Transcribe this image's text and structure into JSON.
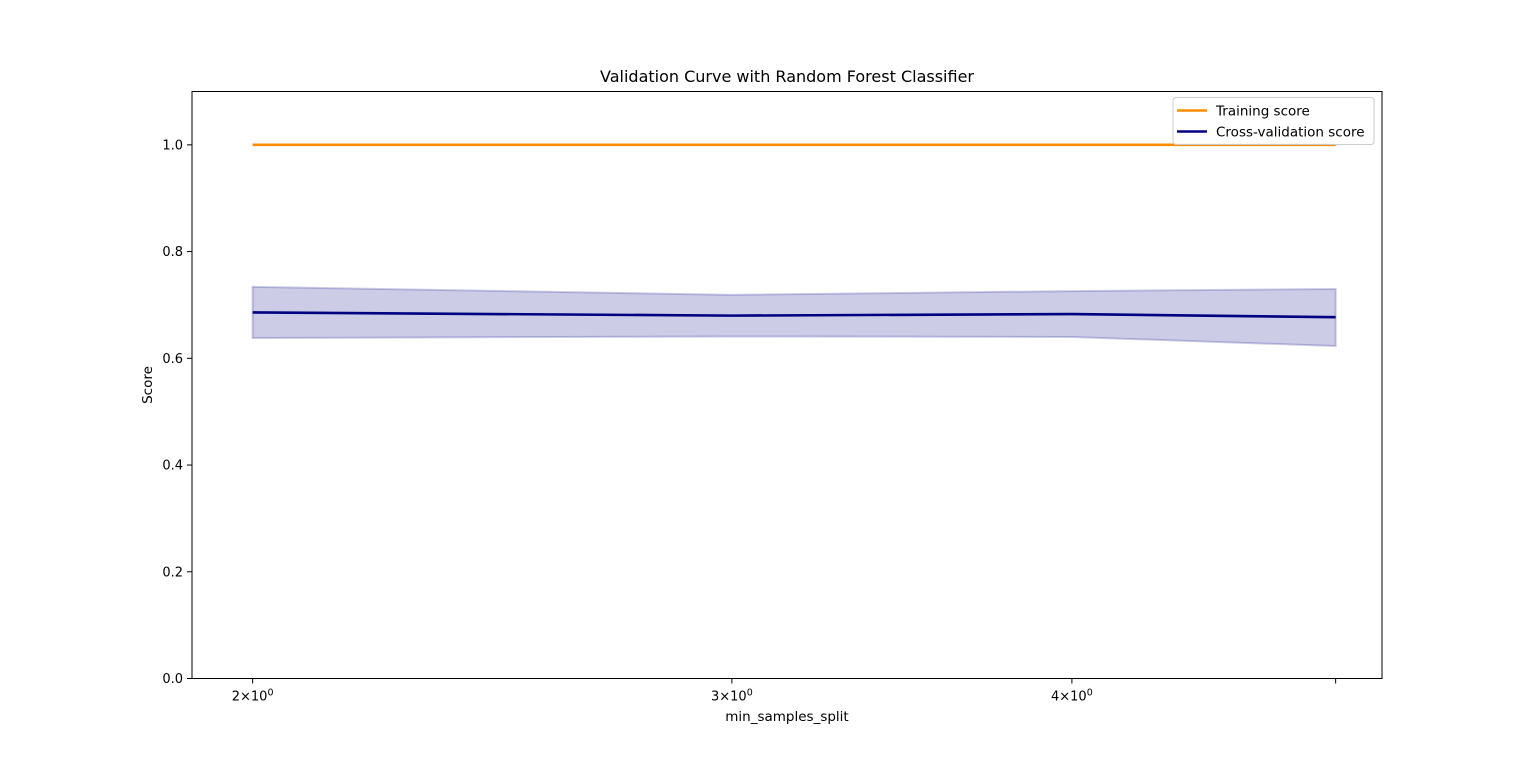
{
  "chart_data": {
    "type": "line",
    "title": "Validation Curve with Random Forest Classifier",
    "xlabel": "min_samples_split",
    "ylabel": "Score",
    "xscale": "log",
    "x": [
      2,
      3,
      4,
      5
    ],
    "xlim": [
      1.9,
      5.2
    ],
    "ylim": [
      0.0,
      1.1
    ],
    "xticks": [
      {
        "value": 2,
        "base": "2",
        "exp": "0"
      },
      {
        "value": 3,
        "base": "3",
        "exp": "0"
      },
      {
        "value": 4,
        "base": "4",
        "exp": "0"
      },
      {
        "value": 5,
        "base": "",
        "exp": ""
      }
    ],
    "yticks": [
      {
        "value": 0.0,
        "label": "0.0"
      },
      {
        "value": 0.2,
        "label": "0.2"
      },
      {
        "value": 0.4,
        "label": "0.4"
      },
      {
        "value": 0.6,
        "label": "0.6"
      },
      {
        "value": 0.8,
        "label": "0.8"
      },
      {
        "value": 1.0,
        "label": "1.0"
      }
    ],
    "series": [
      {
        "name": "Training score",
        "color": "#ff8c00",
        "values": [
          1.0,
          1.0,
          1.0,
          1.0
        ],
        "band_lower": [
          1.0,
          1.0,
          1.0,
          1.0
        ],
        "band_upper": [
          1.0,
          1.0,
          1.0,
          1.0
        ]
      },
      {
        "name": "Cross-validation score",
        "color": "#000080",
        "values": [
          0.686,
          0.68,
          0.683,
          0.677
        ],
        "band_lower": [
          0.638,
          0.641,
          0.64,
          0.623
        ],
        "band_upper": [
          0.734,
          0.719,
          0.726,
          0.73
        ]
      }
    ],
    "grid": false,
    "legend_position": "top-right"
  }
}
